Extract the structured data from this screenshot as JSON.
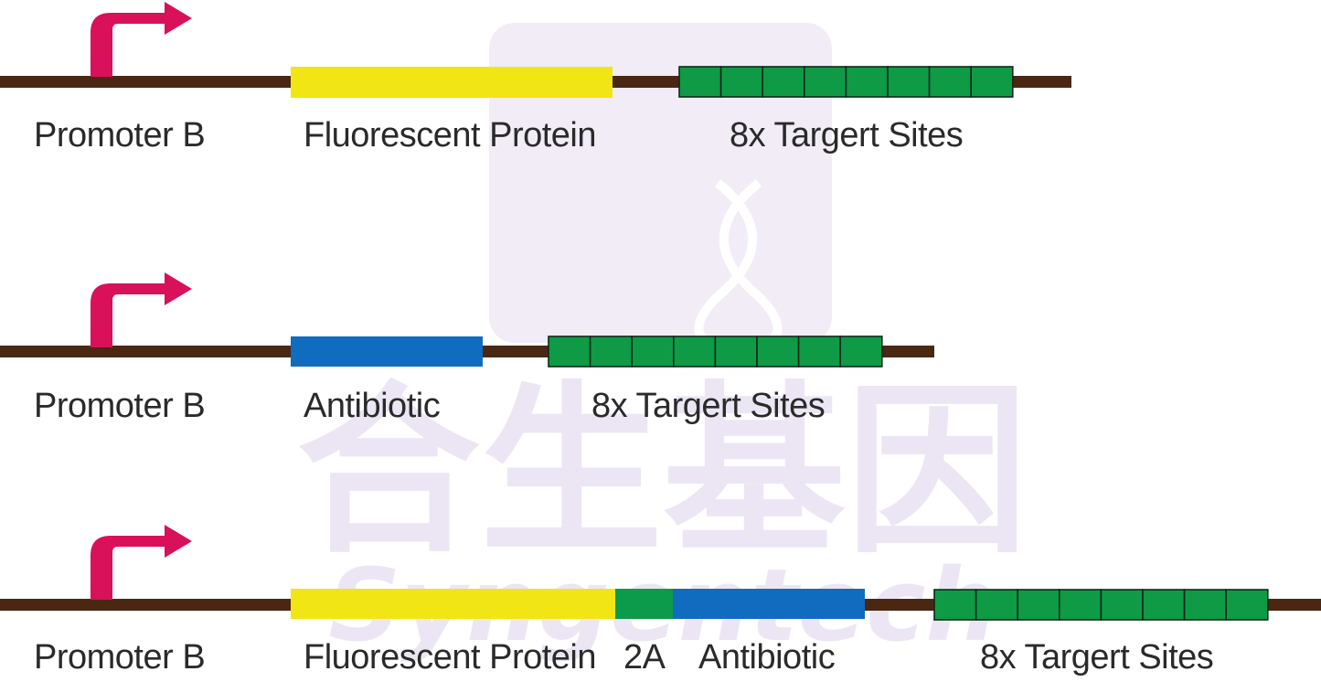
{
  "watermark": {
    "cn_text": "合生基因",
    "en_text": "Syngentech"
  },
  "colors": {
    "backbone": "#4a2713",
    "promoter": "#d9105a",
    "fluorescent": "#f2e516",
    "antibiotic": "#0f6cbe",
    "linker_2a": "#0b9b4a",
    "target_site": "#0f9a46",
    "target_border": "#0c2a19",
    "watermark": "#ece6f4"
  },
  "constructs": [
    {
      "labels": {
        "promoter": "Promoter B",
        "fluorescent": "Fluorescent Protein",
        "targets": "8x Targert Sites"
      }
    },
    {
      "labels": {
        "promoter": "Promoter B",
        "antibiotic": "Antibiotic",
        "targets": "8x Targert Sites"
      }
    },
    {
      "labels": {
        "promoter": "Promoter B",
        "fluorescent": "Fluorescent Protein",
        "linker": "2A",
        "antibiotic": "Antibiotic",
        "targets": "8x Targert Sites"
      }
    }
  ]
}
